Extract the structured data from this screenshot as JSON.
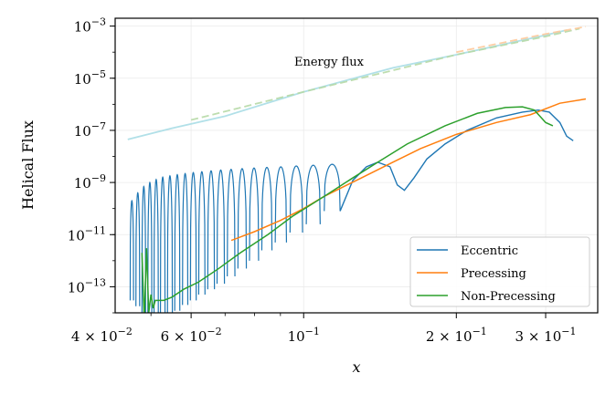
{
  "chart_data": {
    "type": "line",
    "title": "",
    "xlabel": "x",
    "ylabel": "Helical Flux",
    "xscale": "log",
    "yscale": "log",
    "xlim": [
      0.0425,
      0.38
    ],
    "ylim": [
      1e-14,
      0.002
    ],
    "x_ticks": [
      {
        "value": 0.04,
        "mant": "4 × 10",
        "exp": "−2"
      },
      {
        "value": 0.06,
        "mant": "6 × 10",
        "exp": "−2"
      },
      {
        "value": 0.1,
        "mant": "10",
        "exp": "−1"
      },
      {
        "value": 0.2,
        "mant": "2 × 10",
        "exp": "−1"
      },
      {
        "value": 0.3,
        "mant": "3 × 10",
        "exp": "−1"
      }
    ],
    "y_ticks": [
      {
        "value": 0.001,
        "mant": "10",
        "exp": "−3"
      },
      {
        "value": 1e-05,
        "mant": "10",
        "exp": "−5"
      },
      {
        "value": 1e-07,
        "mant": "10",
        "exp": "−7"
      },
      {
        "value": 1e-09,
        "mant": "10",
        "exp": "−9"
      },
      {
        "value": 1e-11,
        "mant": "10",
        "exp": "−11"
      },
      {
        "value": 1e-13,
        "mant": "10",
        "exp": "−13"
      }
    ],
    "grid": true,
    "legend_position": "lower-right",
    "annotation": "Energy flux",
    "energy_flux": {
      "series": [
        {
          "color": "#a8dde6",
          "x": [
            0.045,
            0.055,
            0.07,
            0.1,
            0.15,
            0.2,
            0.3,
            0.33
          ],
          "y": [
            4.5e-08,
            1.2e-07,
            3.5e-07,
            3e-06,
            2.5e-05,
            8e-05,
            0.00045,
            0.0007
          ]
        },
        {
          "color": "#b6d9a6",
          "x": [
            0.06,
            0.1,
            0.15,
            0.2,
            0.3,
            0.35
          ],
          "y": [
            2.5e-07,
            3e-06,
            2e-05,
            8e-05,
            0.0004,
            0.0008
          ]
        },
        {
          "color": "#ffc99a",
          "x": [
            0.2,
            0.3,
            0.36
          ],
          "y": [
            0.0001,
            0.0005,
            0.00095
          ]
        }
      ]
    },
    "series": [
      {
        "name": "Eccentric",
        "color": "#1f77b4",
        "lobes": [
          {
            "x0": 0.0455,
            "x1": 0.0462,
            "peak": 2e-10,
            "low": 3e-14
          },
          {
            "x0": 0.0467,
            "x1": 0.0475,
            "peak": 4e-10,
            "low": 1.8e-14
          },
          {
            "x0": 0.048,
            "x1": 0.0488,
            "peak": 7e-10,
            "low": 8e-15
          },
          {
            "x0": 0.0493,
            "x1": 0.0502,
            "peak": 1e-09,
            "low": 5e-15
          },
          {
            "x0": 0.0507,
            "x1": 0.0517,
            "peak": 1.3e-09,
            "low": 4e-15
          },
          {
            "x0": 0.0522,
            "x1": 0.0533,
            "peak": 1.6e-09,
            "low": 5e-15
          },
          {
            "x0": 0.0539,
            "x1": 0.0551,
            "peak": 1.8e-09,
            "low": 8e-15
          },
          {
            "x0": 0.0557,
            "x1": 0.057,
            "peak": 2e-09,
            "low": 1.2e-14
          },
          {
            "x0": 0.0577,
            "x1": 0.0591,
            "peak": 2.2e-09,
            "low": 2e-14
          },
          {
            "x0": 0.0598,
            "x1": 0.0614,
            "peak": 2.4e-09,
            "low": 3e-14
          },
          {
            "x0": 0.0621,
            "x1": 0.0639,
            "peak": 2.6e-09,
            "low": 5e-14
          },
          {
            "x0": 0.0647,
            "x1": 0.0667,
            "peak": 2.8e-09,
            "low": 8e-14
          },
          {
            "x0": 0.0675,
            "x1": 0.0698,
            "peak": 3e-09,
            "low": 1.3e-13
          },
          {
            "x0": 0.0707,
            "x1": 0.0732,
            "peak": 3.2e-09,
            "low": 2.5e-13
          },
          {
            "x0": 0.0742,
            "x1": 0.0771,
            "peak": 3.4e-09,
            "low": 5e-13
          },
          {
            "x0": 0.0782,
            "x1": 0.0815,
            "peak": 3.6e-09,
            "low": 1e-12
          },
          {
            "x0": 0.0827,
            "x1": 0.0866,
            "peak": 3.8e-09,
            "low": 2.5e-12
          },
          {
            "x0": 0.0879,
            "x1": 0.0925,
            "peak": 4e-09,
            "low": 5e-12
          },
          {
            "x0": 0.094,
            "x1": 0.0995,
            "peak": 4.3e-09,
            "low": 1.2e-11
          },
          {
            "x0": 0.1012,
            "x1": 0.1078,
            "peak": 4.6e-09,
            "low": 2.5e-11
          },
          {
            "x0": 0.1098,
            "x1": 0.118,
            "peak": 5e-09,
            "low": 8e-11
          }
        ],
        "tail": {
          "x": [
            0.118,
            0.125,
            0.133,
            0.14,
            0.148,
            0.153,
            0.158,
            0.165,
            0.175,
            0.19,
            0.21,
            0.24,
            0.27,
            0.29,
            0.305,
            0.32,
            0.33,
            0.34
          ],
          "y": [
            8e-11,
            1.2e-09,
            4e-09,
            6e-09,
            4e-09,
            8e-10,
            5e-10,
            1.5e-09,
            8e-09,
            3e-08,
            1e-07,
            3e-07,
            5e-07,
            6e-07,
            5e-07,
            2e-07,
            6e-08,
            4e-08
          ]
        }
      },
      {
        "name": "Precessing",
        "color": "#ff7f0e",
        "x": [
          0.072,
          0.08,
          0.09,
          0.1,
          0.11,
          0.12,
          0.13,
          0.15,
          0.17,
          0.2,
          0.24,
          0.28,
          0.32,
          0.36
        ],
        "y": [
          6e-12,
          1.3e-11,
          3.5e-11,
          1e-10,
          3e-10,
          7e-10,
          1.5e-09,
          6e-09,
          2e-08,
          7e-08,
          2e-07,
          4e-07,
          1.1e-06,
          1.6e-06
        ]
      },
      {
        "name": "Non-Precessing",
        "color": "#2ca02c",
        "x": [
          0.048,
          0.0485,
          0.049,
          0.0495,
          0.05,
          0.0505,
          0.051,
          0.052,
          0.053,
          0.055,
          0.058,
          0.062,
          0.068,
          0.075,
          0.085,
          0.095,
          0.11,
          0.125,
          0.14,
          0.16,
          0.19,
          0.22,
          0.25,
          0.27,
          0.285,
          0.3,
          0.31
        ],
        "y": [
          2e-12,
          5e-15,
          3e-12,
          1e-14,
          5e-14,
          1.5e-14,
          3e-14,
          3e-14,
          3e-14,
          4e-14,
          8e-14,
          1.5e-13,
          5e-13,
          2e-12,
          1e-11,
          5e-11,
          3e-10,
          1.5e-09,
          6e-09,
          3e-08,
          1.5e-07,
          4.5e-07,
          7.5e-07,
          8e-07,
          6e-07,
          2e-07,
          1.5e-07
        ]
      }
    ]
  }
}
